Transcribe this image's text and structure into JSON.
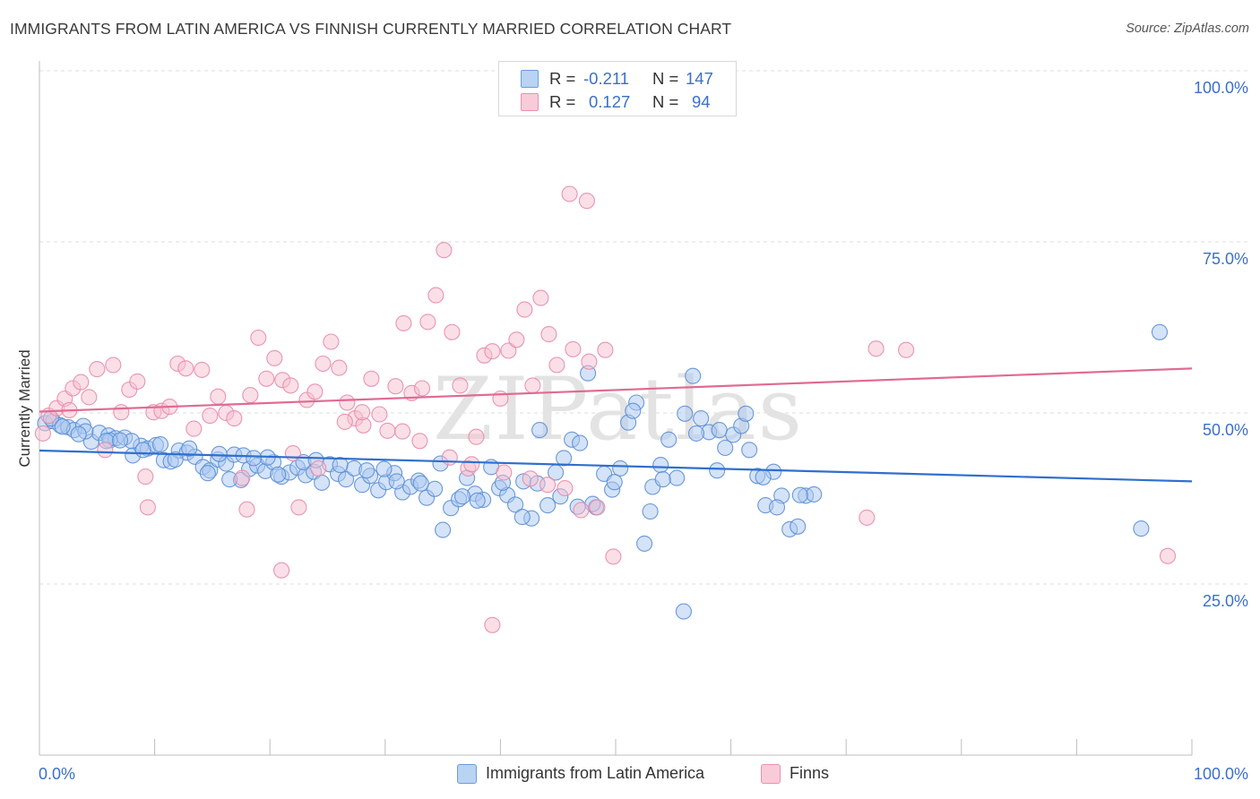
{
  "title": "IMMIGRANTS FROM LATIN AMERICA VS FINNISH CURRENTLY MARRIED CORRELATION CHART",
  "source": "Source: ZipAtlas.com",
  "watermark": "ZIPatlas",
  "colors": {
    "blue_fill": "#a9c8f0",
    "blue_stroke": "#5b8ed6",
    "blue_line": "#2f6fce",
    "pink_fill": "#f7bfd0",
    "pink_stroke": "#e88aa8",
    "pink_line": "#e06a93",
    "tick_label": "#3a70c8"
  },
  "legend_top": {
    "rows": [
      {
        "r_label": "R =",
        "r_value": "-0.211",
        "n_label": "N =",
        "n_value": "147"
      },
      {
        "r_label": "R =",
        "r_value": "0.127",
        "n_label": "N =",
        "n_value": "94"
      }
    ]
  },
  "chart_data": {
    "type": "scatter",
    "title": "IMMIGRANTS FROM LATIN AMERICA VS FINNISH CURRENTLY MARRIED CORRELATION CHART",
    "xlabel": "",
    "ylabel": "Currently Married",
    "xlim": [
      0,
      100
    ],
    "ylim": [
      0,
      100
    ],
    "x_tick_labels": [
      "0.0%",
      "100.0%"
    ],
    "y_tick_labels": [
      "100.0%",
      "75.0%",
      "50.0%",
      "25.0%"
    ],
    "y_tick_values": [
      100,
      75,
      50,
      25
    ],
    "grid": "horizontal dashed",
    "legend_placement": "bottom-center",
    "series": [
      {
        "name": "Immigrants from Latin America",
        "R": -0.211,
        "N": 147,
        "trend": [
          [
            0,
            44.5
          ],
          [
            100,
            40.0
          ]
        ],
        "points": [
          [
            0.5,
            48.5
          ],
          [
            1.2,
            48.8
          ],
          [
            1.8,
            48.2
          ],
          [
            2.5,
            47.9
          ],
          [
            3.0,
            47.5
          ],
          [
            3.8,
            48.1
          ],
          [
            4.5,
            45.8
          ],
          [
            5.2,
            47.1
          ],
          [
            6.0,
            46.7
          ],
          [
            6.6,
            46.3
          ],
          [
            7.4,
            46.4
          ],
          [
            8.1,
            43.8
          ],
          [
            8.8,
            45.2
          ],
          [
            9.4,
            44.8
          ],
          [
            10.1,
            45.3
          ],
          [
            10.8,
            43.1
          ],
          [
            11.4,
            42.9
          ],
          [
            12.1,
            44.5
          ],
          [
            12.8,
            44.2
          ],
          [
            13.5,
            43.6
          ],
          [
            14.2,
            42.1
          ],
          [
            14.8,
            41.6
          ],
          [
            15.5,
            43.2
          ],
          [
            16.2,
            42.6
          ],
          [
            16.9,
            43.9
          ],
          [
            17.5,
            40.2
          ],
          [
            18.2,
            41.8
          ],
          [
            18.9,
            42.3
          ],
          [
            19.6,
            41.5
          ],
          [
            20.3,
            42.8
          ],
          [
            21.0,
            40.7
          ],
          [
            21.7,
            41.3
          ],
          [
            22.4,
            42.0
          ],
          [
            23.1,
            40.9
          ],
          [
            23.8,
            41.4
          ],
          [
            24.5,
            39.8
          ],
          [
            25.2,
            42.5
          ],
          [
            25.9,
            41.1
          ],
          [
            26.6,
            40.3
          ],
          [
            27.3,
            41.9
          ],
          [
            28.0,
            39.5
          ],
          [
            28.7,
            40.8
          ],
          [
            29.4,
            38.7
          ],
          [
            30.1,
            39.9
          ],
          [
            30.8,
            41.2
          ],
          [
            31.5,
            38.4
          ],
          [
            32.2,
            39.2
          ],
          [
            32.9,
            40.1
          ],
          [
            33.6,
            37.6
          ],
          [
            34.3,
            38.9
          ],
          [
            35.0,
            32.9
          ],
          [
            35.7,
            36.1
          ],
          [
            36.4,
            37.4
          ],
          [
            37.1,
            40.5
          ],
          [
            37.8,
            38.2
          ],
          [
            38.5,
            37.3
          ],
          [
            39.2,
            42.1
          ],
          [
            39.9,
            39.0
          ],
          [
            40.6,
            38.0
          ],
          [
            41.3,
            36.6
          ],
          [
            42.0,
            40.0
          ],
          [
            42.7,
            34.6
          ],
          [
            43.4,
            47.5
          ],
          [
            44.1,
            36.5
          ],
          [
            44.8,
            41.3
          ],
          [
            45.5,
            43.4
          ],
          [
            46.2,
            46.1
          ],
          [
            46.9,
            45.6
          ],
          [
            47.6,
            55.8
          ],
          [
            48.3,
            36.2
          ],
          [
            49.0,
            41.1
          ],
          [
            49.7,
            38.8
          ],
          [
            50.4,
            41.9
          ],
          [
            51.1,
            48.6
          ],
          [
            51.8,
            51.5
          ],
          [
            52.5,
            30.9
          ],
          [
            53.2,
            39.2
          ],
          [
            53.9,
            42.4
          ],
          [
            54.6,
            46.1
          ],
          [
            55.3,
            40.5
          ],
          [
            56.0,
            49.9
          ],
          [
            56.7,
            55.4
          ],
          [
            57.4,
            49.2
          ],
          [
            58.1,
            47.2
          ],
          [
            58.8,
            41.6
          ],
          [
            59.5,
            44.9
          ],
          [
            60.2,
            46.8
          ],
          [
            60.9,
            48.1
          ],
          [
            61.6,
            44.6
          ],
          [
            62.3,
            40.8
          ],
          [
            63.0,
            36.5
          ],
          [
            63.7,
            41.4
          ],
          [
            64.4,
            37.9
          ],
          [
            65.1,
            33.0
          ],
          [
            65.8,
            33.4
          ],
          [
            66.5,
            37.9
          ],
          [
            67.2,
            38.1
          ],
          [
            55.9,
            21.0
          ],
          [
            95.6,
            33.1
          ],
          [
            97.2,
            61.8
          ],
          [
            4.0,
            47.3
          ],
          [
            6.1,
            46.0
          ],
          [
            8.0,
            45.9
          ],
          [
            10.5,
            45.4
          ],
          [
            13.0,
            44.8
          ],
          [
            15.6,
            44.0
          ],
          [
            17.7,
            43.8
          ],
          [
            19.8,
            43.5
          ],
          [
            22.9,
            42.8
          ],
          [
            24.0,
            43.1
          ],
          [
            26.1,
            42.4
          ],
          [
            28.4,
            41.6
          ],
          [
            29.9,
            41.8
          ],
          [
            31.0,
            40.0
          ],
          [
            33.1,
            39.7
          ],
          [
            34.8,
            42.6
          ],
          [
            36.7,
            37.8
          ],
          [
            38.0,
            37.2
          ],
          [
            40.2,
            39.8
          ],
          [
            41.9,
            34.8
          ],
          [
            43.2,
            39.7
          ],
          [
            45.2,
            37.8
          ],
          [
            46.7,
            36.3
          ],
          [
            48.0,
            36.7
          ],
          [
            49.9,
            39.9
          ],
          [
            51.5,
            50.3
          ],
          [
            53.0,
            35.6
          ],
          [
            54.1,
            40.3
          ],
          [
            57.0,
            47.0
          ],
          [
            59.0,
            47.5
          ],
          [
            61.3,
            49.9
          ],
          [
            62.8,
            40.6
          ],
          [
            64.0,
            36.2
          ],
          [
            66.0,
            38.0
          ],
          [
            1.0,
            49.2
          ],
          [
            2.0,
            48.0
          ],
          [
            3.4,
            46.9
          ],
          [
            5.8,
            45.9
          ],
          [
            7.0,
            46.0
          ],
          [
            9.0,
            44.6
          ],
          [
            11.8,
            43.2
          ],
          [
            14.6,
            41.2
          ],
          [
            16.5,
            40.3
          ],
          [
            18.6,
            43.4
          ],
          [
            20.7,
            41.0
          ]
        ]
      },
      {
        "name": "Finns",
        "R": 0.127,
        "N": 94,
        "trend": [
          [
            0,
            50.2
          ],
          [
            100,
            56.5
          ]
        ],
        "points": [
          [
            0.3,
            47.0
          ],
          [
            0.8,
            49.6
          ],
          [
            1.5,
            50.7
          ],
          [
            2.2,
            52.1
          ],
          [
            2.9,
            53.6
          ],
          [
            3.6,
            54.5
          ],
          [
            4.3,
            52.3
          ],
          [
            5.0,
            56.4
          ],
          [
            5.7,
            44.6
          ],
          [
            6.4,
            57.0
          ],
          [
            7.1,
            50.1
          ],
          [
            7.8,
            53.4
          ],
          [
            8.5,
            54.6
          ],
          [
            9.2,
            40.7
          ],
          [
            9.9,
            50.1
          ],
          [
            10.6,
            50.3
          ],
          [
            11.3,
            50.9
          ],
          [
            12.0,
            57.2
          ],
          [
            12.7,
            56.5
          ],
          [
            13.4,
            47.7
          ],
          [
            14.1,
            56.3
          ],
          [
            14.8,
            49.6
          ],
          [
            15.5,
            52.4
          ],
          [
            16.2,
            50.0
          ],
          [
            16.9,
            49.2
          ],
          [
            17.6,
            40.5
          ],
          [
            18.3,
            52.6
          ],
          [
            19.0,
            61.0
          ],
          [
            19.7,
            55.0
          ],
          [
            20.4,
            58.0
          ],
          [
            21.1,
            54.8
          ],
          [
            21.8,
            54.0
          ],
          [
            22.5,
            36.2
          ],
          [
            23.2,
            51.9
          ],
          [
            23.9,
            53.1
          ],
          [
            24.6,
            57.2
          ],
          [
            25.3,
            60.4
          ],
          [
            26.0,
            56.6
          ],
          [
            26.7,
            51.5
          ],
          [
            27.4,
            49.2
          ],
          [
            28.1,
            48.2
          ],
          [
            28.8,
            55.0
          ],
          [
            29.5,
            49.8
          ],
          [
            30.2,
            47.4
          ],
          [
            30.9,
            53.9
          ],
          [
            31.6,
            63.1
          ],
          [
            32.3,
            52.9
          ],
          [
            33.0,
            45.9
          ],
          [
            33.7,
            63.3
          ],
          [
            34.4,
            67.2
          ],
          [
            35.1,
            73.8
          ],
          [
            35.8,
            61.8
          ],
          [
            36.5,
            54.0
          ],
          [
            37.2,
            41.9
          ],
          [
            37.9,
            46.5
          ],
          [
            38.6,
            58.4
          ],
          [
            39.3,
            59.0
          ],
          [
            40.0,
            52.1
          ],
          [
            40.7,
            59.1
          ],
          [
            41.4,
            60.7
          ],
          [
            42.1,
            65.1
          ],
          [
            42.8,
            54.0
          ],
          [
            43.5,
            66.8
          ],
          [
            44.2,
            61.5
          ],
          [
            44.9,
            57.0
          ],
          [
            45.6,
            39.0
          ],
          [
            46.3,
            59.3
          ],
          [
            47.0,
            35.8
          ],
          [
            47.7,
            57.5
          ],
          [
            48.4,
            36.2
          ],
          [
            49.1,
            59.2
          ],
          [
            49.8,
            29.0
          ],
          [
            46.0,
            82.0
          ],
          [
            47.5,
            81.0
          ],
          [
            9.4,
            36.2
          ],
          [
            21.0,
            27.0
          ],
          [
            39.3,
            19.0
          ],
          [
            71.8,
            34.7
          ],
          [
            72.6,
            59.4
          ],
          [
            75.2,
            59.2
          ],
          [
            97.9,
            29.1
          ],
          [
            35.6,
            43.5
          ],
          [
            18.0,
            35.9
          ],
          [
            22.0,
            44.1
          ],
          [
            24.2,
            41.9
          ],
          [
            26.5,
            48.7
          ],
          [
            28.0,
            50.1
          ],
          [
            31.5,
            47.3
          ],
          [
            33.2,
            53.6
          ],
          [
            37.5,
            42.5
          ],
          [
            40.3,
            41.3
          ],
          [
            42.6,
            40.4
          ],
          [
            44.1,
            39.5
          ],
          [
            2.6,
            50.4
          ]
        ]
      }
    ]
  }
}
